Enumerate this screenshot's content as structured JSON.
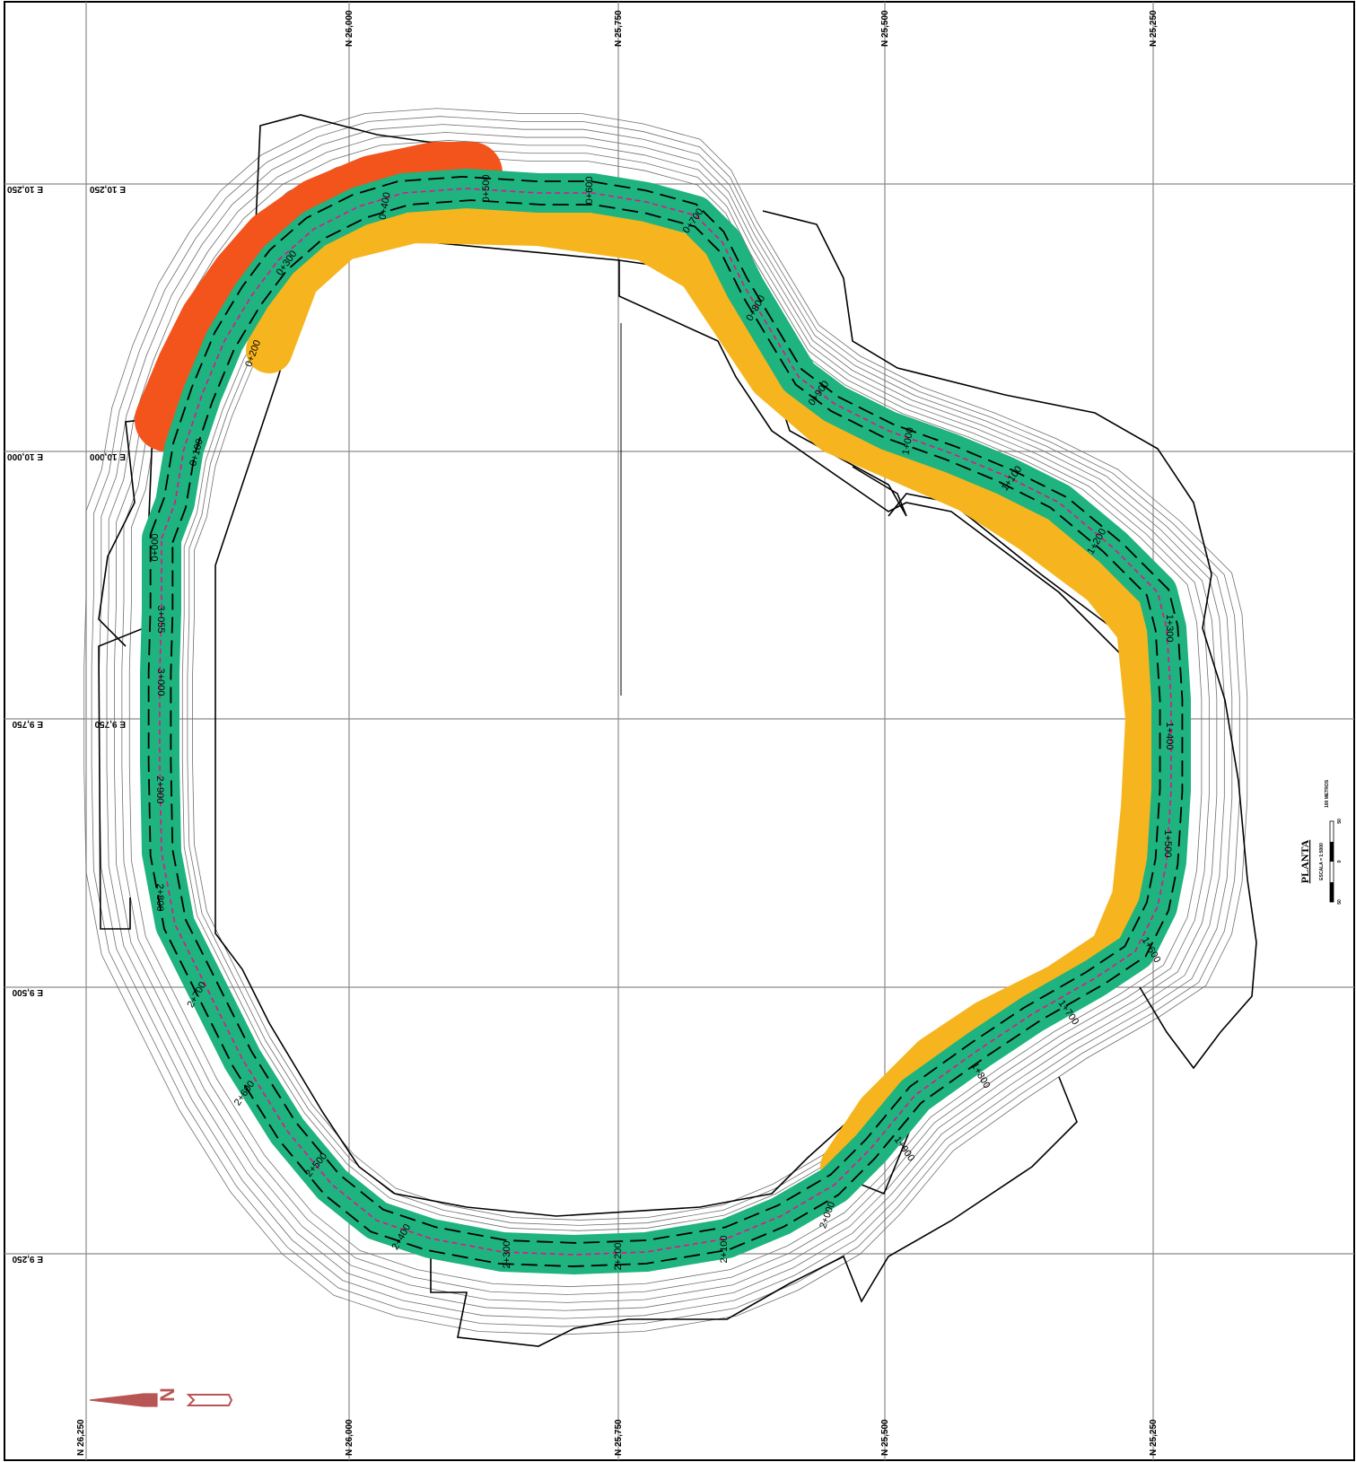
{
  "grid": {
    "top_labels": [
      "N 26,000",
      "N 25,750",
      "N 25,500",
      "N 25,250"
    ],
    "bottom_labels": [
      "N 26,250",
      "N 26,000",
      "N 25,750",
      "N 25,500",
      "N 25,250"
    ],
    "left_labels": [
      "E 10,250",
      "E 10,000",
      "E 9,750",
      "E 9,500",
      "E 9,250"
    ],
    "inner_labels": [
      "E 10,250",
      "E 10,000",
      "E 9,750"
    ]
  },
  "stations": [
    "0+000",
    "0+100",
    "0+200",
    "0+300",
    "0+400",
    "0+500",
    "0+600",
    "0+700",
    "0+800",
    "0+900",
    "1+000",
    "1+100",
    "1+200",
    "1+300",
    "1+400",
    "1+500",
    "1+600",
    "1+700",
    "1+800",
    "1+900",
    "2+000",
    "2+100",
    "2+200",
    "2+300",
    "2+400",
    "2+500",
    "2+600",
    "2+700",
    "2+800",
    "2+900",
    "3+000",
    "3+055"
  ],
  "title": {
    "heading": "PLANTA",
    "scale": "ESCALA = 1:5000",
    "bar_unit": "100 METROS",
    "bar_ticks": [
      "50",
      "0",
      "50"
    ]
  },
  "colors": {
    "road": "#1fb37f",
    "cut": "#f6b51e",
    "fill": "#f2541b",
    "centerline": "#e2138c",
    "lanes": "#000000",
    "contours": "#6f6f6f",
    "north_arrow": "#b85555"
  },
  "north_arrow": {
    "letter": "N"
  }
}
